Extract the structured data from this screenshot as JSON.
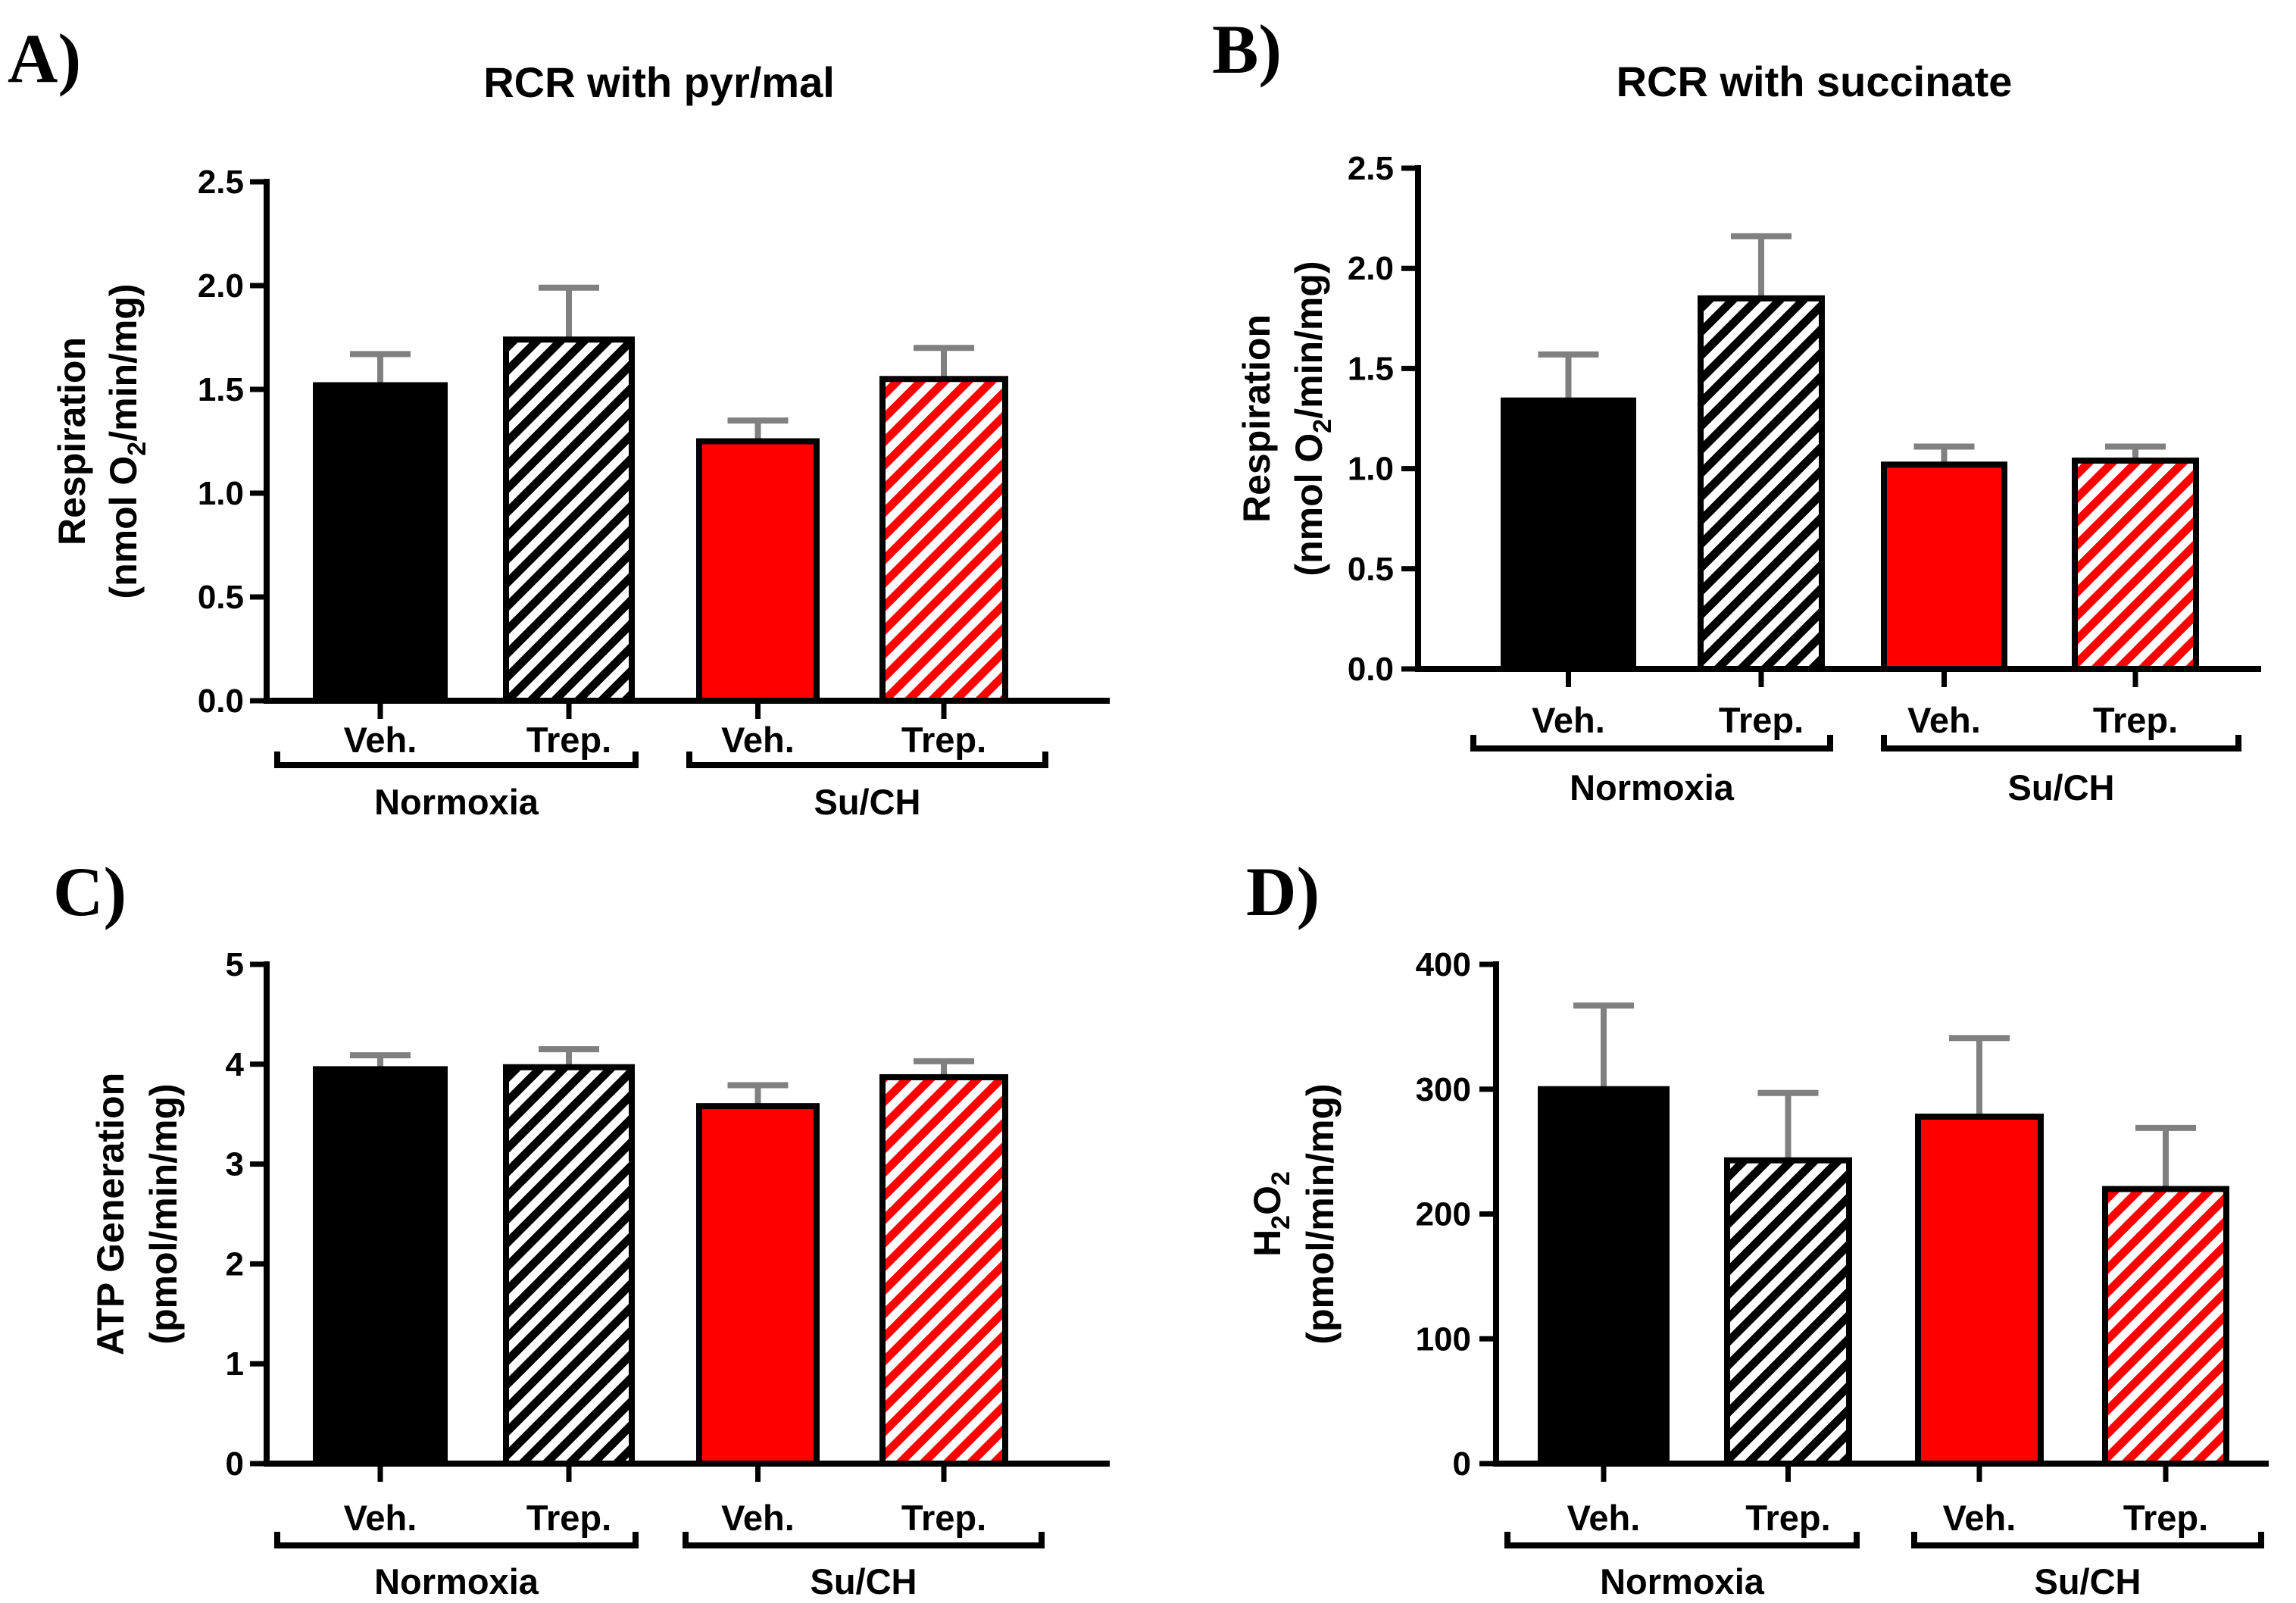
{
  "colors": {
    "normoxia": "#000000",
    "su_ch": "#ff0000",
    "error_bar": "#808080",
    "hatch_bg": "#ffffff"
  },
  "chart_data": [
    {
      "panel": "A)",
      "type": "bar",
      "title": "RCR with pyr/mal",
      "ylabel_line1": "Respiration",
      "ylabel_line2_parts": [
        "(nmol O",
        "2",
        "/min/mg)"
      ],
      "ylim": [
        0,
        2.5
      ],
      "yticks": [
        "0.0",
        "0.5",
        "1.0",
        "1.5",
        "2.0",
        "2.5"
      ],
      "ytick_values": [
        0,
        0.5,
        1.0,
        1.5,
        2.0,
        2.5
      ],
      "categories": [
        "Veh.",
        "Trep.",
        "Veh.",
        "Trep."
      ],
      "groups": [
        "Normoxia",
        "Su/CH"
      ],
      "values": [
        1.52,
        1.74,
        1.25,
        1.55
      ],
      "errors": [
        0.15,
        0.25,
        0.1,
        0.15
      ],
      "patterns": [
        "solid",
        "hatch",
        "solid",
        "hatch"
      ],
      "group_index": [
        0,
        0,
        1,
        1
      ]
    },
    {
      "panel": "B)",
      "type": "bar",
      "title": "RCR with succinate",
      "ylabel_line1": "Respiration",
      "ylabel_line2_parts": [
        "(nmol O",
        "2",
        "/min/mg)"
      ],
      "ylim": [
        0,
        2.5
      ],
      "yticks": [
        "0.0",
        "0.5",
        "1.0",
        "1.5",
        "2.0",
        "2.5"
      ],
      "ytick_values": [
        0,
        0.5,
        1.0,
        1.5,
        2.0,
        2.5
      ],
      "categories": [
        "Veh.",
        "Trep.",
        "Veh.",
        "Trep."
      ],
      "groups": [
        "Normoxia",
        "Su/CH"
      ],
      "values": [
        1.34,
        1.85,
        1.02,
        1.04
      ],
      "errors": [
        0.23,
        0.31,
        0.09,
        0.07
      ],
      "patterns": [
        "solid",
        "hatch",
        "solid",
        "hatch"
      ],
      "group_index": [
        0,
        0,
        1,
        1
      ]
    },
    {
      "panel": "C)",
      "type": "bar",
      "title": "",
      "ylabel_line1": "ATP Generation",
      "ylabel_line2_parts": [
        "(pmol/min/mg)"
      ],
      "ylim": [
        0,
        5
      ],
      "yticks": [
        "0",
        "1",
        "2",
        "3",
        "4",
        "5"
      ],
      "ytick_values": [
        0,
        1,
        2,
        3,
        4,
        5
      ],
      "categories": [
        "Veh.",
        "Trep.",
        "Veh.",
        "Trep."
      ],
      "groups": [
        "Normoxia",
        "Su/CH"
      ],
      "values": [
        3.95,
        3.97,
        3.58,
        3.87
      ],
      "errors": [
        0.14,
        0.18,
        0.21,
        0.16
      ],
      "patterns": [
        "solid",
        "hatch",
        "solid",
        "hatch"
      ],
      "group_index": [
        0,
        0,
        1,
        1
      ]
    },
    {
      "panel": "D)",
      "type": "bar",
      "title": "",
      "ylabel_line1_parts": [
        "H",
        "2",
        "O",
        "2"
      ],
      "ylabel_line2_parts": [
        "(pmol/min/mg)"
      ],
      "ylim": [
        0,
        400
      ],
      "yticks": [
        "0",
        "100",
        "200",
        "300",
        "400"
      ],
      "ytick_values": [
        0,
        100,
        200,
        300,
        400
      ],
      "categories": [
        "Veh.",
        "Trep.",
        "Veh.",
        "Trep."
      ],
      "groups": [
        "Normoxia",
        "Su/CH"
      ],
      "values": [
        300,
        243,
        278,
        220
      ],
      "errors": [
        67,
        54,
        63,
        49
      ],
      "patterns": [
        "solid",
        "hatch",
        "solid",
        "hatch"
      ],
      "group_index": [
        0,
        0,
        1,
        1
      ]
    }
  ]
}
